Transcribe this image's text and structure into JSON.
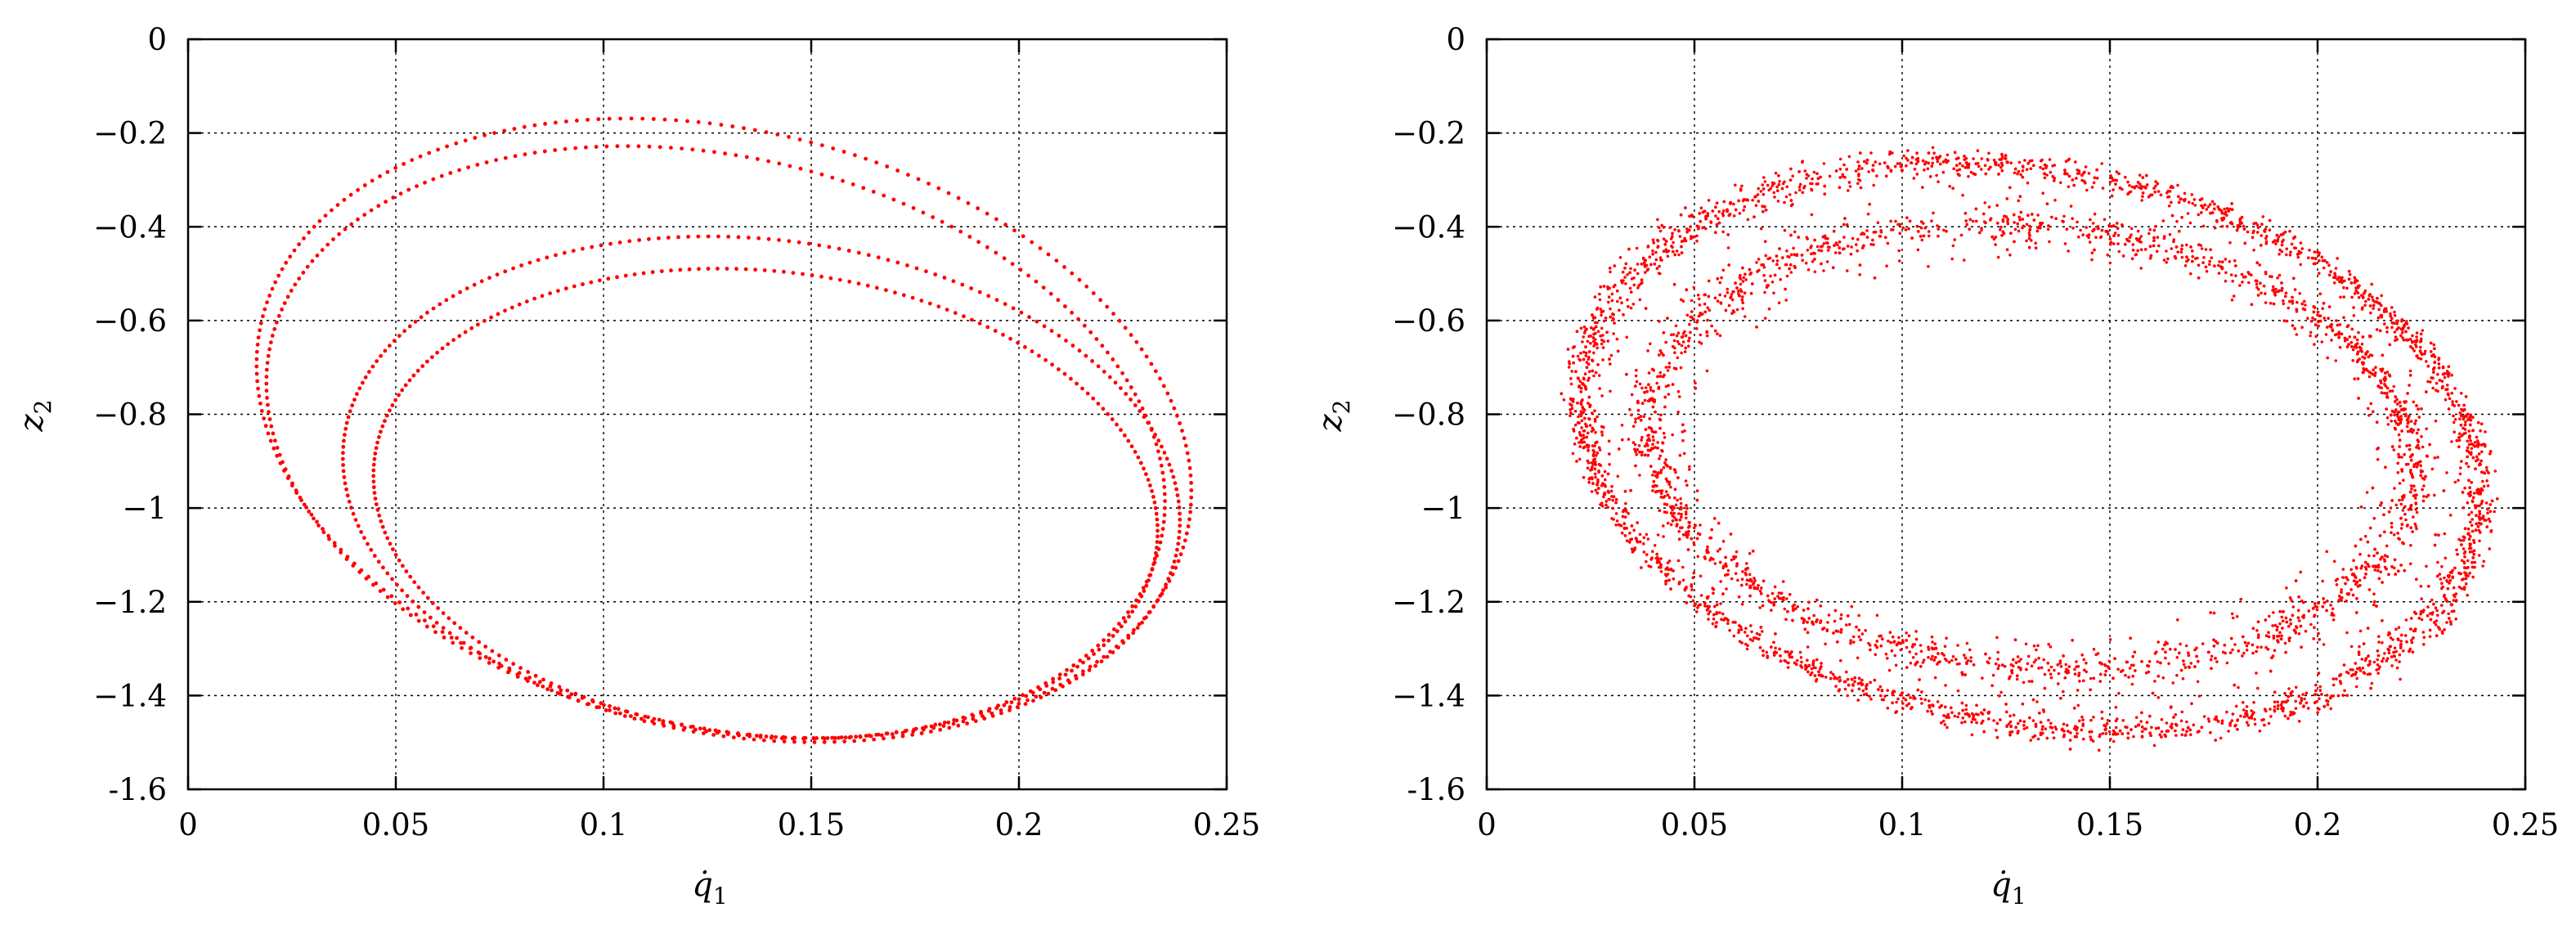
{
  "chart_data": [
    {
      "type": "scatter",
      "panel": "left",
      "xlabel": "q̇1",
      "ylabel": "z2",
      "xlim": [
        0,
        0.25
      ],
      "ylim": [
        -1.6,
        0
      ],
      "xticks": [
        "0",
        "0.05",
        "0.1",
        "0.15",
        "0.2",
        "0.25"
      ],
      "yticks": [
        "0",
        "−0.2",
        "−0.4",
        "−0.6",
        "−0.8",
        "−1",
        "−1.2",
        "−1.4",
        "-1.6"
      ],
      "grid": true,
      "marker_color": "#ff0000",
      "description": "closed loops traced by dense points (four nested elliptical orbits)",
      "loops": [
        {
          "cx": 0.129,
          "cy": -0.83,
          "ax": 0.107,
          "ay": 0.68,
          "tilt_deg": 20
        },
        {
          "cx": 0.127,
          "cy": -0.86,
          "ax": 0.103,
          "ay": 0.65,
          "tilt_deg": 20
        },
        {
          "cx": 0.138,
          "cy": -0.96,
          "ax": 0.098,
          "ay": 0.55,
          "tilt_deg": 20
        },
        {
          "cx": 0.139,
          "cy": -0.99,
          "ax": 0.092,
          "ay": 0.51,
          "tilt_deg": 20
        }
      ]
    },
    {
      "type": "scatter",
      "panel": "right",
      "xlabel": "q̇1",
      "ylabel": "z2",
      "xlim": [
        0,
        0.25
      ],
      "ylim": [
        -1.6,
        0
      ],
      "xticks": [
        "0",
        "0.05",
        "0.1",
        "0.15",
        "0.2",
        "0.25"
      ],
      "yticks": [
        "0",
        "−0.2",
        "−0.4",
        "−0.6",
        "−0.8",
        "−1",
        "−1.2",
        "−1.4",
        "-1.6"
      ],
      "grid": true,
      "marker_color": "#ff0000",
      "description": "diffuse scattered points filling an annular band between the loops",
      "band": {
        "cx": 0.131,
        "cy": -0.87,
        "ax_outer": 0.108,
        "ay_outer": 0.66,
        "ax_inner": 0.082,
        "ay_inner": 0.4,
        "tilt_deg": 20,
        "n_points": 6000
      }
    }
  ]
}
